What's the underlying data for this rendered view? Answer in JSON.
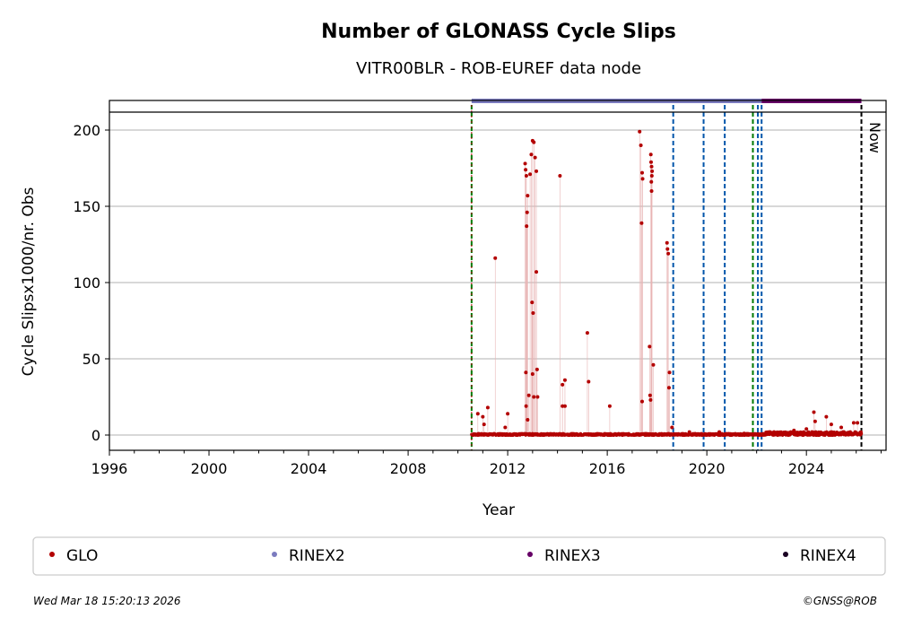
{
  "chart_data": {
    "type": "scatter",
    "title": "Number of GLONASS Cycle Slips",
    "subtitle": "VITR00BLR - ROB-EUREF data node",
    "xlabel": "Year",
    "ylabel": "Cycle Slipsx1000/nr. Obs",
    "xlim": [
      1996,
      2027.2
    ],
    "ylim": [
      -10,
      210
    ],
    "x_ticks": [
      1996,
      2000,
      2004,
      2008,
      2012,
      2016,
      2020,
      2024
    ],
    "y_ticks": [
      0,
      50,
      100,
      150,
      200
    ],
    "grid_y": true,
    "now_label": "Now",
    "now_year": 2026.21,
    "start_year": 2010.55,
    "blue_events": [
      2018.65,
      2019.87,
      2020.72,
      2022.05,
      2022.2
    ],
    "green_events": [
      2010.55,
      2021.85
    ],
    "format_bars": [
      {
        "name": "RINEX2",
        "start": 2010.55,
        "end": 2022.2,
        "color": "#7b7bbf"
      },
      {
        "name": "RINEX3",
        "start": 2022.2,
        "end": 2026.21,
        "color": "#660066"
      }
    ],
    "series": [
      {
        "name": "GLO",
        "color": "#b30000",
        "points": [
          [
            2010.6,
            0
          ],
          [
            2010.8,
            14
          ],
          [
            2011.0,
            12
          ],
          [
            2011.05,
            7
          ],
          [
            2011.2,
            18
          ],
          [
            2011.5,
            116
          ],
          [
            2011.9,
            5
          ],
          [
            2012.0,
            14
          ],
          [
            2012.7,
            178
          ],
          [
            2012.72,
            174
          ],
          [
            2012.75,
            170
          ],
          [
            2012.8,
            157
          ],
          [
            2012.78,
            146
          ],
          [
            2012.76,
            137
          ],
          [
            2012.73,
            41
          ],
          [
            2012.74,
            19
          ],
          [
            2012.8,
            10
          ],
          [
            2012.85,
            26
          ],
          [
            2012.9,
            171
          ],
          [
            2012.95,
            184
          ],
          [
            2013.0,
            193
          ],
          [
            2013.05,
            192
          ],
          [
            2012.98,
            87
          ],
          [
            2013.02,
            80
          ],
          [
            2013.0,
            40
          ],
          [
            2013.05,
            25
          ],
          [
            2013.1,
            182
          ],
          [
            2013.15,
            173
          ],
          [
            2013.15,
            107
          ],
          [
            2013.18,
            43
          ],
          [
            2013.2,
            25
          ],
          [
            2014.1,
            170
          ],
          [
            2014.2,
            33
          ],
          [
            2014.3,
            36
          ],
          [
            2014.2,
            19
          ],
          [
            2014.3,
            19
          ],
          [
            2015.2,
            67
          ],
          [
            2015.25,
            35
          ],
          [
            2016.1,
            19
          ],
          [
            2017.3,
            199
          ],
          [
            2017.35,
            190
          ],
          [
            2017.4,
            172
          ],
          [
            2017.42,
            168
          ],
          [
            2017.38,
            139
          ],
          [
            2017.4,
            22
          ],
          [
            2017.7,
            58
          ],
          [
            2017.75,
            184
          ],
          [
            2017.76,
            179
          ],
          [
            2017.78,
            176
          ],
          [
            2017.8,
            173
          ],
          [
            2017.79,
            170
          ],
          [
            2017.77,
            166
          ],
          [
            2017.78,
            160
          ],
          [
            2017.72,
            26
          ],
          [
            2017.74,
            23
          ],
          [
            2017.85,
            46
          ],
          [
            2018.4,
            126
          ],
          [
            2018.42,
            122
          ],
          [
            2018.45,
            119
          ],
          [
            2018.5,
            41
          ],
          [
            2018.48,
            31
          ],
          [
            2018.6,
            5
          ],
          [
            2019.3,
            2
          ],
          [
            2020.5,
            2
          ],
          [
            2021.5,
            1
          ],
          [
            2022.7,
            2
          ],
          [
            2023.5,
            3
          ],
          [
            2024.0,
            4
          ],
          [
            2024.3,
            15
          ],
          [
            2024.35,
            9
          ],
          [
            2024.8,
            12
          ],
          [
            2025.0,
            7
          ],
          [
            2025.4,
            5
          ],
          [
            2025.9,
            8
          ],
          [
            2026.05,
            8
          ]
        ]
      },
      {
        "name": "RINEX2",
        "color": "#7b7bbf"
      },
      {
        "name": "RINEX3",
        "color": "#660066"
      },
      {
        "name": "RINEX4",
        "color": "#1a0022"
      }
    ]
  },
  "footer": {
    "timestamp": "Wed Mar 18 15:20:13 2026",
    "copyright": "©GNSS@ROB"
  }
}
